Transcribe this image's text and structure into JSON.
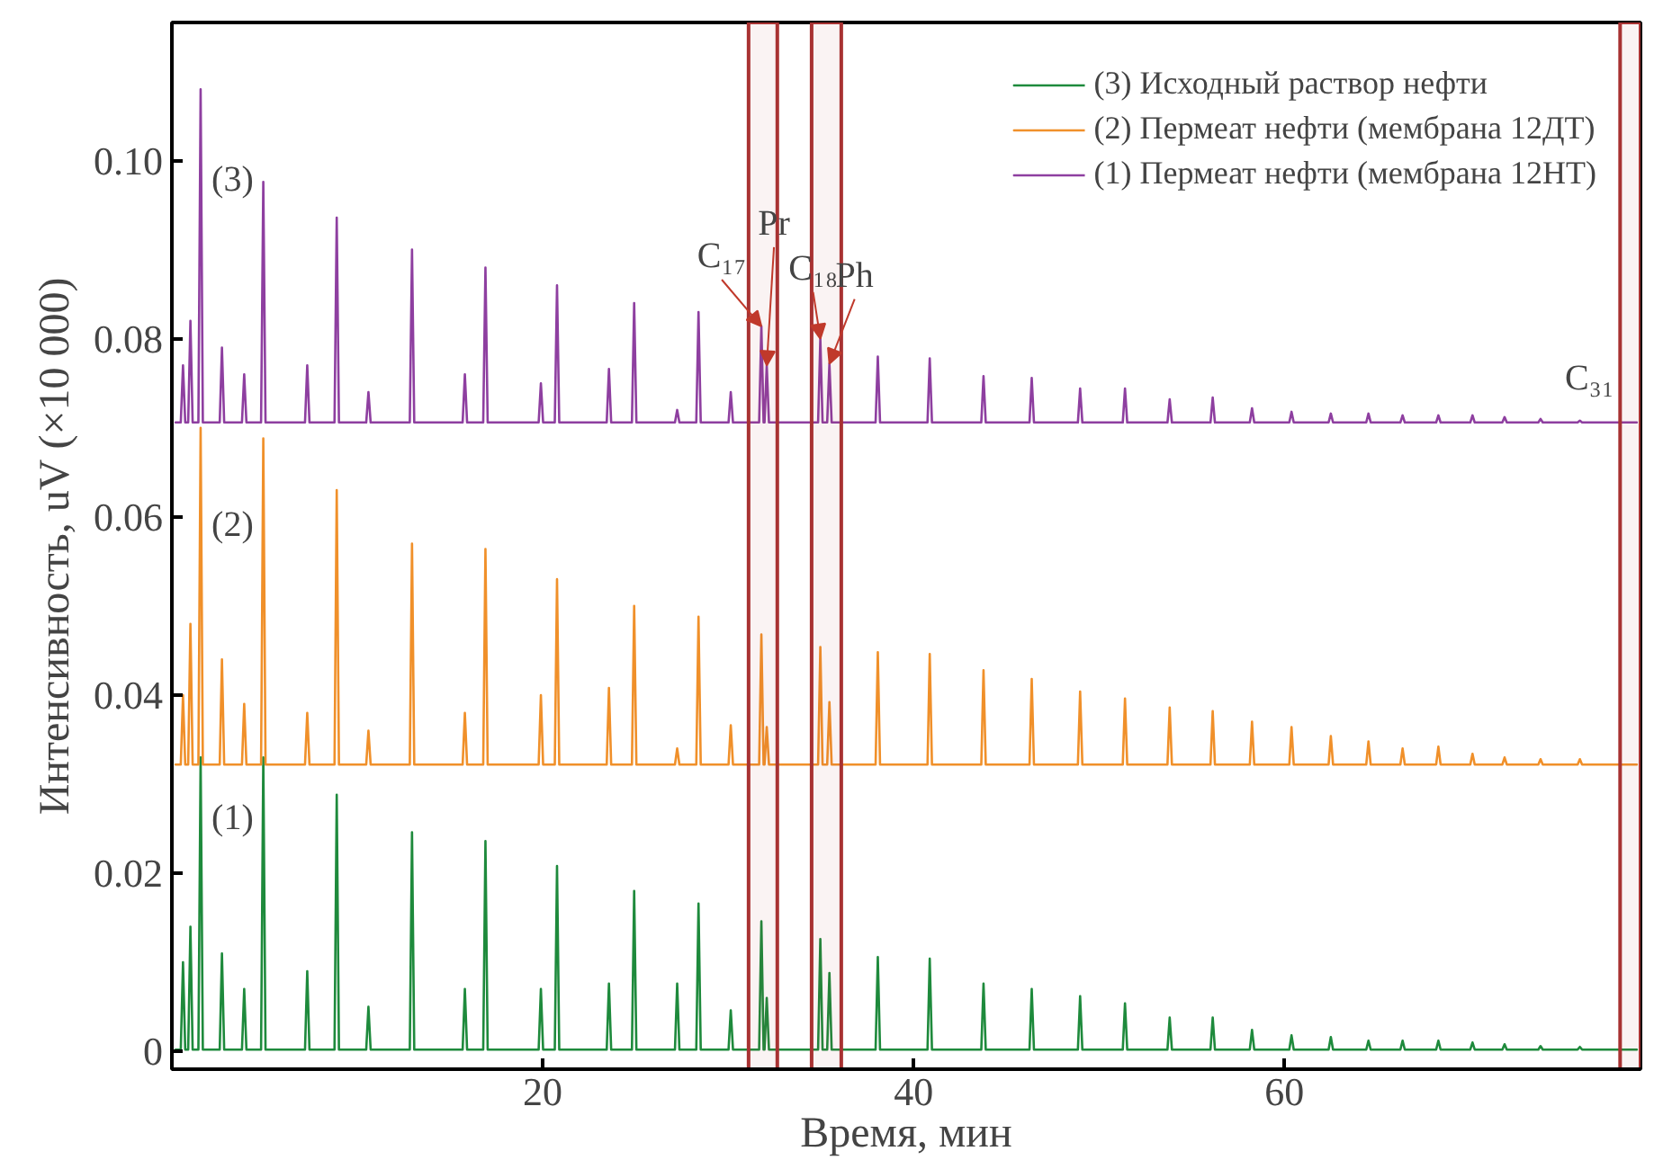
{
  "chart_data": {
    "type": "line",
    "xlabel": "Время, мин",
    "ylabel": "Интенсивность, uV (×10 000)",
    "xlim": [
      0,
      79.2
    ],
    "xticks": [
      20,
      40,
      60
    ],
    "ylim": [
      -0.002,
      0.1155
    ],
    "yticks": [
      0,
      0.02,
      0.04,
      0.06,
      0.08,
      {
        "value": 0.1,
        "label": "0.10"
      }
    ],
    "grid": false,
    "legend": "top right",
    "line_style": "solid",
    "x": [
      0.2,
      0.48,
      0.6,
      0.72,
      0.88,
      1.0,
      1.12,
      1.43,
      1.55,
      1.67,
      2.58,
      2.7,
      2.82,
      3.78,
      3.9,
      4.02,
      4.81,
      4.93,
      5.05,
      7.18,
      7.3,
      7.42,
      8.77,
      8.89,
      9.01,
      10.48,
      10.6,
      10.72,
      12.83,
      12.95,
      13.07,
      15.68,
      15.8,
      15.92,
      16.79,
      16.91,
      17.03,
      19.78,
      19.9,
      20.02,
      20.65,
      20.77,
      20.89,
      23.45,
      23.57,
      23.69,
      24.81,
      24.93,
      25.05,
      27.13,
      27.25,
      27.37,
      28.28,
      28.4,
      28.52,
      30.02,
      30.14,
      30.26,
      31.67,
      31.79,
      31.91,
      31.96,
      32.08,
      32.2,
      34.85,
      34.97,
      35.09,
      35.34,
      35.46,
      35.58,
      37.95,
      38.07,
      38.19,
      40.75,
      40.87,
      40.99,
      43.65,
      43.77,
      43.89,
      46.25,
      46.37,
      46.49,
      48.86,
      48.98,
      49.1,
      51.28,
      51.4,
      51.52,
      53.69,
      53.81,
      53.93,
      56.01,
      56.13,
      56.25,
      58.13,
      58.25,
      58.37,
      60.26,
      60.38,
      60.5,
      62.38,
      62.5,
      62.62,
      64.41,
      64.53,
      64.65,
      66.25,
      66.37,
      66.49,
      68.18,
      68.3,
      68.42,
      70.02,
      70.14,
      70.26,
      71.75,
      71.87,
      71.99,
      73.69,
      73.81,
      73.93,
      75.81,
      75.93,
      76.05,
      79.0
    ],
    "series": [
      {
        "name": "(3) Исходный раствор нефти",
        "color": "#1e8a3c",
        "values": [
          0.0002,
          0.0002,
          0.01,
          0.0002,
          0.0002,
          0.014,
          0.0002,
          0.0002,
          0.033,
          0.0002,
          0.0002,
          0.011,
          0.0002,
          0.0002,
          0.007,
          0.0002,
          0.0002,
          0.033,
          0.0002,
          0.0002,
          0.009,
          0.0002,
          0.0002,
          0.0288,
          0.0002,
          0.0002,
          0.005,
          0.0002,
          0.0002,
          0.0246,
          0.0002,
          0.0002,
          0.007,
          0.0002,
          0.0002,
          0.0236,
          0.0002,
          0.0002,
          0.007,
          0.0002,
          0.0002,
          0.0208,
          0.0002,
          0.0002,
          0.0076,
          0.0002,
          0.0002,
          0.018,
          0.0002,
          0.0002,
          0.0076,
          0.0002,
          0.0002,
          0.0166,
          0.0002,
          0.0002,
          0.0046,
          0.0002,
          0.0002,
          0.0146,
          0.0002,
          0.0002,
          0.006,
          0.0002,
          0.0002,
          0.0126,
          0.0002,
          0.0002,
          0.0088,
          0.0002,
          0.0002,
          0.0106,
          0.0002,
          0.0002,
          0.0104,
          0.0002,
          0.0002,
          0.0076,
          0.0002,
          0.0002,
          0.007,
          0.0002,
          0.0002,
          0.0062,
          0.0002,
          0.0002,
          0.0054,
          0.0002,
          0.0002,
          0.0038,
          0.0002,
          0.0002,
          0.0038,
          0.0002,
          0.0002,
          0.0024,
          0.0002,
          0.0002,
          0.0018,
          0.0002,
          0.0002,
          0.0016,
          0.0002,
          0.0002,
          0.0012,
          0.0002,
          0.0002,
          0.0012,
          0.0002,
          0.0002,
          0.0012,
          0.0002,
          0.0002,
          0.001,
          0.0002,
          0.0002,
          0.0008,
          0.0002,
          0.0002,
          0.0006,
          0.0002,
          0.0002,
          0.0005,
          0.0002,
          0.0002
        ]
      },
      {
        "name": "(2) Пермеат нефти (мембрана 12ДТ)",
        "color": "#f0902a",
        "values": [
          0.0322,
          0.0322,
          0.04,
          0.0322,
          0.0322,
          0.048,
          0.0322,
          0.0322,
          0.07,
          0.0322,
          0.0322,
          0.044,
          0.0322,
          0.0322,
          0.039,
          0.0322,
          0.0322,
          0.0688,
          0.0322,
          0.0322,
          0.038,
          0.0322,
          0.0322,
          0.063,
          0.0322,
          0.0322,
          0.036,
          0.0322,
          0.0322,
          0.057,
          0.0322,
          0.0322,
          0.038,
          0.0322,
          0.0322,
          0.0564,
          0.0322,
          0.0322,
          0.04,
          0.0322,
          0.0322,
          0.053,
          0.0322,
          0.0322,
          0.0408,
          0.0322,
          0.0322,
          0.05,
          0.0322,
          0.0322,
          0.034,
          0.0322,
          0.0322,
          0.0488,
          0.0322,
          0.0322,
          0.0366,
          0.0322,
          0.0322,
          0.0468,
          0.0322,
          0.0322,
          0.0364,
          0.0322,
          0.0322,
          0.0454,
          0.0322,
          0.0322,
          0.0392,
          0.0322,
          0.0322,
          0.0448,
          0.0322,
          0.0322,
          0.0446,
          0.0322,
          0.0322,
          0.0428,
          0.0322,
          0.0322,
          0.0418,
          0.0322,
          0.0322,
          0.0404,
          0.0322,
          0.0322,
          0.0396,
          0.0322,
          0.0322,
          0.0386,
          0.0322,
          0.0322,
          0.0382,
          0.0322,
          0.0322,
          0.037,
          0.0322,
          0.0322,
          0.0364,
          0.0322,
          0.0322,
          0.0354,
          0.0322,
          0.0322,
          0.0348,
          0.0322,
          0.0322,
          0.034,
          0.0322,
          0.0322,
          0.0342,
          0.0322,
          0.0322,
          0.0334,
          0.0322,
          0.0322,
          0.033,
          0.0322,
          0.0322,
          0.0328,
          0.0322,
          0.0322,
          0.0328,
          0.0322,
          0.0322
        ]
      },
      {
        "name": "(1) Пермеат нефти (мембрана 12НТ)",
        "color": "#8e3fa0",
        "values": [
          0.0706,
          0.0706,
          0.077,
          0.0706,
          0.0706,
          0.082,
          0.0706,
          0.0706,
          0.108,
          0.0706,
          0.0706,
          0.079,
          0.0706,
          0.0706,
          0.076,
          0.0706,
          0.0706,
          0.0976,
          0.0706,
          0.0706,
          0.077,
          0.0706,
          0.0706,
          0.0936,
          0.0706,
          0.0706,
          0.074,
          0.0706,
          0.0706,
          0.09,
          0.0706,
          0.0706,
          0.076,
          0.0706,
          0.0706,
          0.088,
          0.0706,
          0.0706,
          0.075,
          0.0706,
          0.0706,
          0.086,
          0.0706,
          0.0706,
          0.0766,
          0.0706,
          0.0706,
          0.084,
          0.0706,
          0.0706,
          0.072,
          0.0706,
          0.0706,
          0.083,
          0.0706,
          0.0706,
          0.074,
          0.0706,
          0.0706,
          0.0814,
          0.0706,
          0.0706,
          0.077,
          0.0706,
          0.0706,
          0.08,
          0.0706,
          0.0706,
          0.0772,
          0.0706,
          0.0706,
          0.078,
          0.0706,
          0.0706,
          0.0778,
          0.0706,
          0.0706,
          0.0758,
          0.0706,
          0.0706,
          0.0756,
          0.0706,
          0.0706,
          0.0744,
          0.0706,
          0.0706,
          0.0744,
          0.0706,
          0.0706,
          0.0732,
          0.0706,
          0.0706,
          0.0734,
          0.0706,
          0.0706,
          0.0722,
          0.0706,
          0.0706,
          0.0718,
          0.0706,
          0.0706,
          0.0716,
          0.0706,
          0.0706,
          0.0716,
          0.0706,
          0.0706,
          0.0714,
          0.0706,
          0.0706,
          0.0714,
          0.0706,
          0.0706,
          0.0714,
          0.0706,
          0.0706,
          0.0712,
          0.0706,
          0.0706,
          0.071,
          0.0706,
          0.0706,
          0.0708,
          0.0706,
          0.0706
        ]
      }
    ],
    "bands": [
      {
        "axis": "x",
        "from": 31.1,
        "to": 32.65,
        "color": "#a83232"
      },
      {
        "axis": "x",
        "from": 34.5,
        "to": 36.1,
        "color": "#a83232"
      },
      {
        "axis": "x",
        "from": 78.1,
        "to": 79.2,
        "color": "#a83232"
      }
    ],
    "annotations": [
      "(3)",
      "(2)",
      "(1)",
      {
        "text": "C₁₇",
        "x": 31.79,
        "y": 0.0814
      },
      {
        "text": "Pr",
        "x": 32.08,
        "y": 0.077
      },
      {
        "text": "C₁₈",
        "x": 34.97,
        "y": 0.08
      },
      {
        "text": "Ph",
        "x": 35.46,
        "y": 0.0772
      },
      "C₃₁"
    ]
  }
}
